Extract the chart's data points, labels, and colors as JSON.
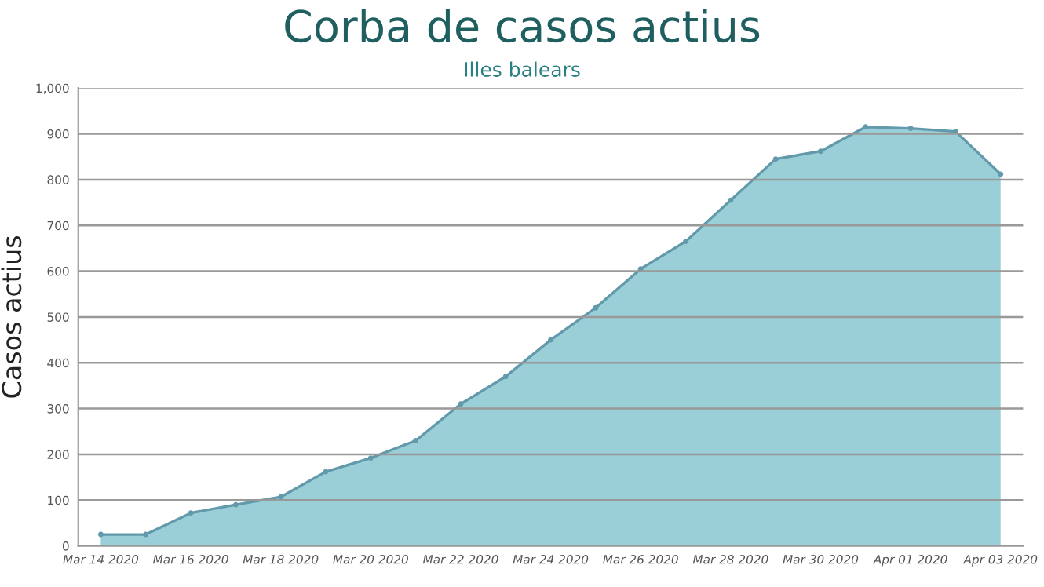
{
  "chart_data": {
    "type": "area",
    "title": "Corba de casos actius",
    "subtitle": "Illes balears",
    "ylabel": "Casos actius",
    "x": [
      "2020-03-14",
      "2020-03-15",
      "2020-03-16",
      "2020-03-17",
      "2020-03-18",
      "2020-03-19",
      "2020-03-20",
      "2020-03-21",
      "2020-03-22",
      "2020-03-23",
      "2020-03-24",
      "2020-03-25",
      "2020-03-26",
      "2020-03-27",
      "2020-03-28",
      "2020-03-29",
      "2020-03-30",
      "2020-03-31",
      "2020-04-01",
      "2020-04-02",
      "2020-04-03"
    ],
    "series": [
      {
        "color": "#96ccd6",
        "values": [
          25,
          25,
          72,
          90,
          107,
          162,
          192,
          230,
          310,
          370,
          450,
          520,
          605,
          665,
          755,
          845,
          862,
          915,
          912,
          905,
          812
        ]
      }
    ],
    "xlim": [
      "2020-03-13T12:00",
      "2020-04-03T12:00"
    ],
    "xticks": [
      {
        "value": "2020-03-14",
        "label": "Mar 14 2020"
      },
      {
        "value": "2020-03-16",
        "label": "Mar 16 2020"
      },
      {
        "value": "2020-03-18",
        "label": "Mar 18 2020"
      },
      {
        "value": "2020-03-20",
        "label": "Mar 20 2020"
      },
      {
        "value": "2020-03-22",
        "label": "Mar 22 2020"
      },
      {
        "value": "2020-03-24",
        "label": "Mar 24 2020"
      },
      {
        "value": "2020-03-26",
        "label": "Mar 26 2020"
      },
      {
        "value": "2020-03-28",
        "label": "Mar 28 2020"
      },
      {
        "value": "2020-03-30",
        "label": "Mar 30 2020"
      },
      {
        "value": "2020-04-01",
        "label": "Apr 01 2020"
      },
      {
        "value": "2020-04-03",
        "label": "Apr 03 2020"
      }
    ],
    "ylim": [
      0,
      1000
    ],
    "yticks": [
      0,
      100,
      200,
      300,
      400,
      500,
      600,
      700,
      800,
      900,
      {
        "value": 1000,
        "label": "1,000"
      }
    ],
    "grid": "y",
    "legend": false,
    "marker": "circle",
    "line_style": "solid"
  }
}
